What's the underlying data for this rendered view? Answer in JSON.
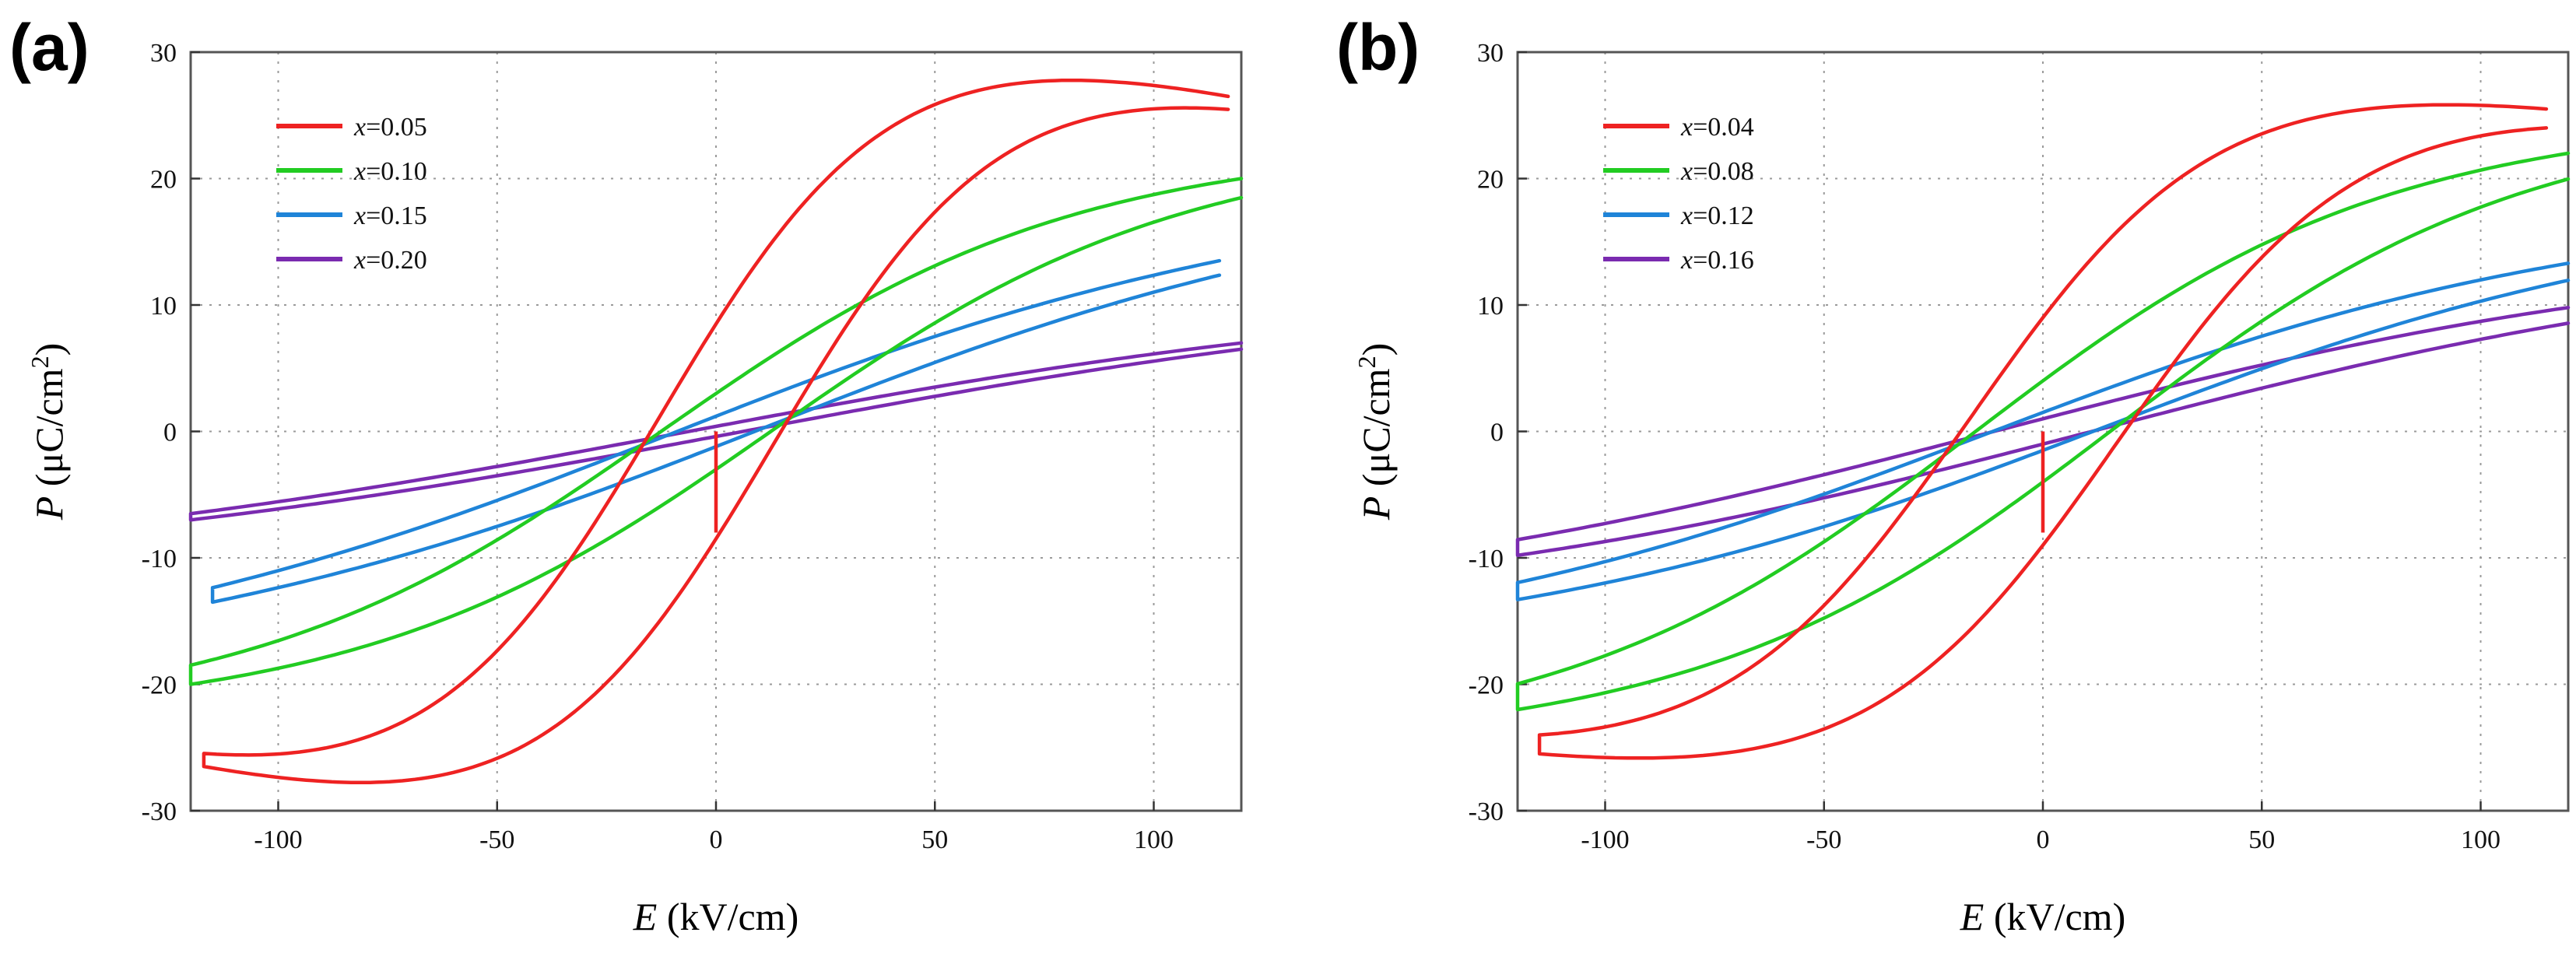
{
  "chart_data": [
    {
      "panel_label": "(a)",
      "type": "line",
      "xlabel_var": "E",
      "xlabel_unit": " (kV/cm)",
      "ylabel_var": "P",
      "ylabel_unit": " (μC/cm",
      "ylabel_sup": "2",
      "ylabel_close": ")",
      "xlim": [
        -120,
        120
      ],
      "ylim": [
        -30,
        30
      ],
      "xticks": [
        -100,
        -50,
        0,
        50,
        100
      ],
      "yticks": [
        -30,
        -20,
        -10,
        0,
        10,
        20,
        30
      ],
      "grid": true,
      "legend_position": "top-left",
      "initial_poling": {
        "x": 0,
        "y_from": 0,
        "y_to": -8,
        "color": "#ee2222"
      },
      "series": [
        {
          "name": "x=0.05",
          "legend_var": "x",
          "legend_value": "=0.05",
          "color": "#ee2222",
          "Emax": 117,
          "Pmax": 26.5,
          "Pr": 8.5,
          "Ec": 13,
          "k": 0.018
        },
        {
          "name": "x=0.10",
          "legend_var": "x",
          "legend_value": "=0.10",
          "color": "#22cc22",
          "Emax": 120,
          "Pmax": 20,
          "Pr": 3,
          "Ec": 13,
          "k": 0.011
        },
        {
          "name": "x=0.15",
          "legend_var": "x",
          "legend_value": "=0.15",
          "color": "#1f84d8",
          "Emax": 115,
          "Pmax": 13.5,
          "Pr": 1.2,
          "Ec": 11,
          "k": 0.008
        },
        {
          "name": "x=0.20",
          "legend_var": "x",
          "legend_value": "=0.20",
          "color": "#7a2bb0",
          "Emax": 120,
          "Pmax": 7,
          "Pr": 0.4,
          "Ec": 7,
          "k": 0.006
        }
      ]
    },
    {
      "panel_label": "(b)",
      "type": "line",
      "xlabel_var": "E",
      "xlabel_unit": " (kV/cm)",
      "ylabel_var": "P",
      "ylabel_unit": " (μC/cm",
      "ylabel_sup": "2",
      "ylabel_close": ")",
      "xlim": [
        -120,
        120
      ],
      "ylim": [
        -30,
        30
      ],
      "xticks": [
        -100,
        -50,
        0,
        50,
        100
      ],
      "yticks": [
        -30,
        -20,
        -10,
        0,
        10,
        20,
        30
      ],
      "grid": true,
      "legend_position": "top-left",
      "initial_poling": {
        "x": 0,
        "y_from": 0,
        "y_to": -8,
        "color": "#ee2222"
      },
      "series": [
        {
          "name": "x=0.04",
          "legend_var": "x",
          "legend_value": "=0.04",
          "color": "#ee2222",
          "Emax": 115,
          "Pmax": 25.5,
          "Pr": 9,
          "Ec": 17,
          "k": 0.017
        },
        {
          "name": "x=0.08",
          "legend_var": "x",
          "legend_value": "=0.08",
          "color": "#22cc22",
          "Emax": 120,
          "Pmax": 22,
          "Pr": 4,
          "Ec": 16,
          "k": 0.011
        },
        {
          "name": "x=0.12",
          "legend_var": "x",
          "legend_value": "=0.12",
          "color": "#1f84d8",
          "Emax": 120,
          "Pmax": 13.3,
          "Pr": 1.5,
          "Ec": 13,
          "k": 0.008
        },
        {
          "name": "x=0.16",
          "legend_var": "x",
          "legend_value": "=0.16",
          "color": "#7a2bb0",
          "Emax": 120,
          "Pmax": 9.8,
          "Pr": 1,
          "Ec": 11,
          "k": 0.006
        }
      ]
    }
  ]
}
